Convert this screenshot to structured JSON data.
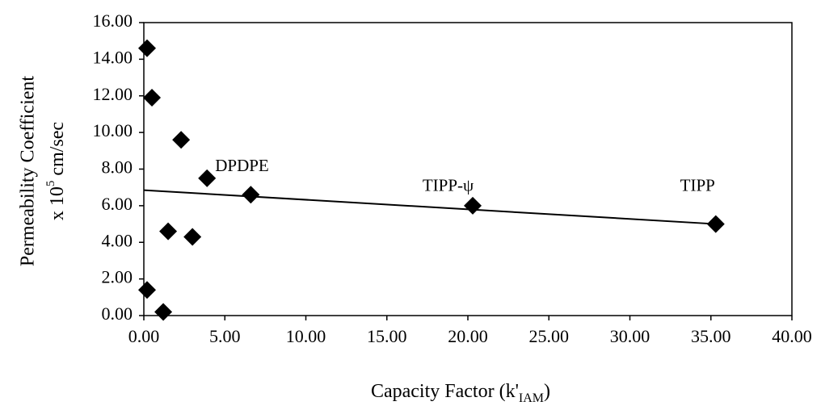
{
  "chart_data": {
    "type": "scatter",
    "title": "",
    "xlabel_main": "Capacity Factor (k'",
    "xlabel_sub": "IAM",
    "xlabel_end": ")",
    "ylabel_line1": "Permeability Coefficient",
    "ylabel_line2_pre": "x 10",
    "ylabel_line2_sup": "5",
    "ylabel_line2_post": " cm/sec",
    "xlim": [
      0,
      40
    ],
    "ylim": [
      0,
      16
    ],
    "x_tick_values": [
      0,
      5,
      10,
      15,
      20,
      25,
      30,
      35,
      40
    ],
    "y_tick_values": [
      0,
      2,
      4,
      6,
      8,
      10,
      12,
      14,
      16
    ],
    "x_tick_labels": [
      "0.00",
      "5.00",
      "10.00",
      "15.00",
      "20.00",
      "25.00",
      "30.00",
      "35.00",
      "40.00"
    ],
    "y_tick_labels": [
      "0.00",
      "2.00",
      "4.00",
      "6.00",
      "8.00",
      "10.00",
      "12.00",
      "14.00",
      "16.00"
    ],
    "grid": false,
    "legend": "none",
    "marker": "diamond",
    "marker_color": "#000000",
    "points": [
      {
        "x": 0.2,
        "y": 14.6
      },
      {
        "x": 0.5,
        "y": 11.9
      },
      {
        "x": 2.3,
        "y": 9.6
      },
      {
        "x": 3.9,
        "y": 7.5
      },
      {
        "x": 6.6,
        "y": 6.6
      },
      {
        "x": 1.5,
        "y": 4.6
      },
      {
        "x": 3.0,
        "y": 4.3
      },
      {
        "x": 0.2,
        "y": 1.4
      },
      {
        "x": 1.2,
        "y": 0.2
      },
      {
        "x": 20.3,
        "y": 6.0
      },
      {
        "x": 35.3,
        "y": 5.0
      }
    ],
    "trendline": {
      "x": [
        0,
        35.3
      ],
      "y": [
        6.85,
        5.0
      ],
      "color": "#000000"
    },
    "annotations": [
      {
        "text": "DPDPE",
        "x": 4.4,
        "y": 7.9
      },
      {
        "text": "TIPP-ψ",
        "x": 17.2,
        "y": 6.8
      },
      {
        "text": "TIPP",
        "x": 33.1,
        "y": 6.8
      }
    ]
  }
}
